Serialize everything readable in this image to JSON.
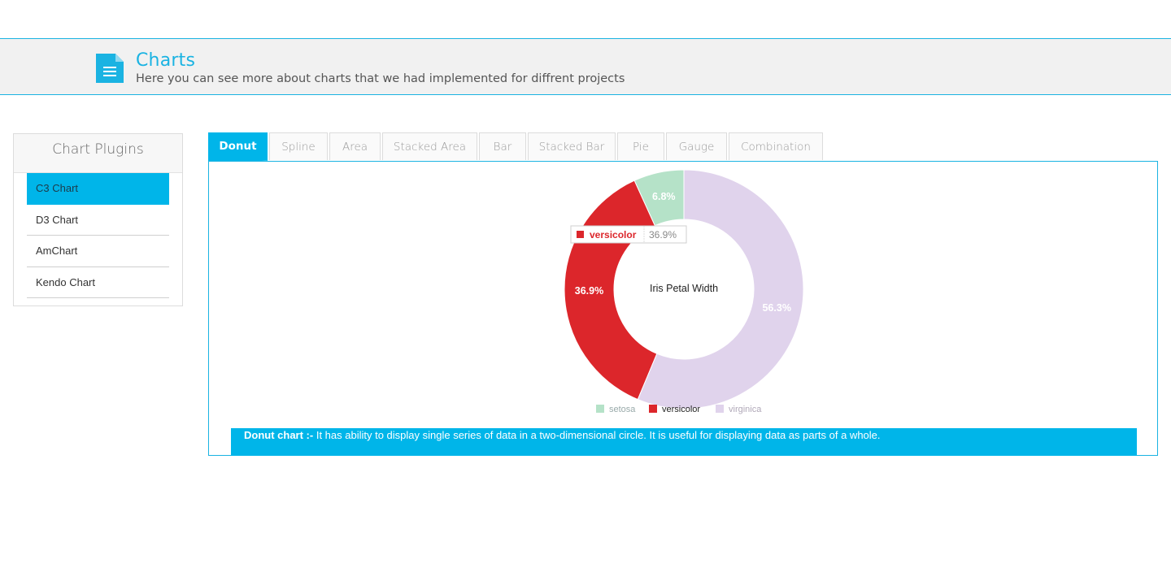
{
  "header": {
    "title": "Charts",
    "subtitle": "Here you can see more about charts that we had implemented for diffrent projects",
    "icon": "document-icon"
  },
  "sidebar": {
    "title": "Chart Plugins",
    "items": [
      {
        "label": "C3 Chart",
        "active": true
      },
      {
        "label": "D3 Chart",
        "active": false
      },
      {
        "label": "AmChart",
        "active": false
      },
      {
        "label": "Kendo Chart",
        "active": false
      }
    ]
  },
  "tabs": [
    {
      "label": "Donut",
      "active": true
    },
    {
      "label": "Spline",
      "active": false
    },
    {
      "label": "Area",
      "active": false
    },
    {
      "label": "Stacked Area",
      "active": false
    },
    {
      "label": "Bar",
      "active": false
    },
    {
      "label": "Stacked Bar",
      "active": false
    },
    {
      "label": "Pie",
      "active": false
    },
    {
      "label": "Gauge",
      "active": false
    },
    {
      "label": "Combination",
      "active": false
    }
  ],
  "description": {
    "lead": "Donut chart :-",
    "text": " It has ability to display single series of data in a two-dimensional circle. It is useful for displaying data as parts of a whole."
  },
  "colors": {
    "accent": "#00b5e9",
    "setosa": "#b5e2c8",
    "versicolor": "#dc262b",
    "virginica": "#e0d3ec"
  },
  "chart_data": {
    "type": "donut",
    "title": "Iris Petal Width",
    "categories": [
      "setosa",
      "versicolor",
      "virginica"
    ],
    "values": [
      6.8,
      36.9,
      56.3
    ],
    "value_labels": [
      "6.8%",
      "36.9%",
      "56.3%"
    ],
    "legend": "bottom",
    "tooltip": {
      "name": "versicolor",
      "value": "36.9%"
    }
  }
}
